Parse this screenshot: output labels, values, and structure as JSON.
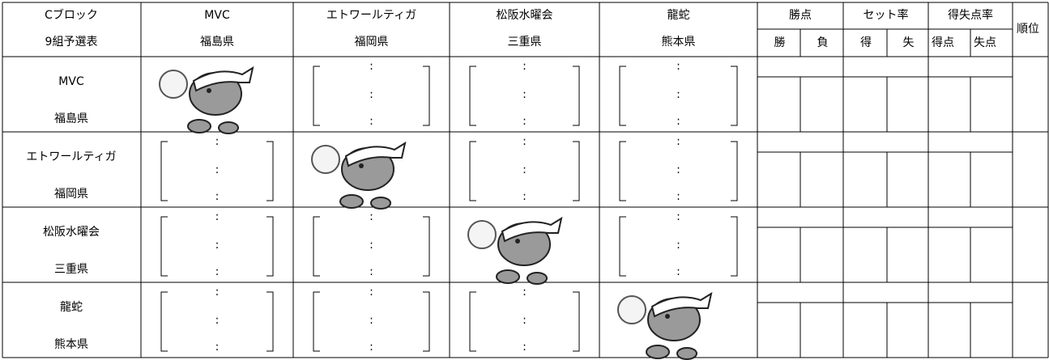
{
  "header": {
    "block": "Cブロック",
    "group": "9組予選表",
    "columns": [
      {
        "label": "勝点",
        "sub": [
          "勝",
          "負"
        ]
      },
      {
        "label": "セット率",
        "sub": [
          "得",
          "失"
        ]
      },
      {
        "label": "得失点率",
        "sub": [
          "得点",
          "失点"
        ]
      }
    ],
    "rank": "順位"
  },
  "teams": [
    {
      "name": "MVC",
      "prefecture": "福島県"
    },
    {
      "name": "エトワールティガ",
      "prefecture": "福岡県"
    },
    {
      "name": "松阪水曜会",
      "prefecture": "三重県"
    },
    {
      "name": "龍蛇",
      "prefecture": "熊本県"
    }
  ],
  "score_separator": ":"
}
